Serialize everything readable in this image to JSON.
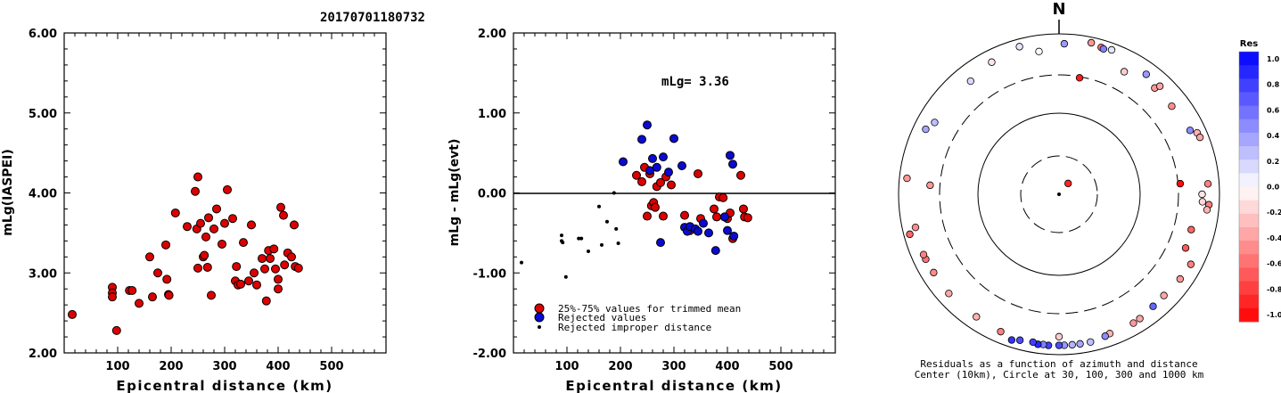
{
  "title": "20170701180732",
  "left_plot": {
    "ylabel": "mLg(IASPEI)",
    "xlabel": "Epicentral distance (km)",
    "ytick_labels": [
      "2.00",
      "3.00",
      "4.00",
      "5.00",
      "6.00"
    ],
    "xtick_labels": [
      "100",
      "200",
      "300",
      "400",
      "500"
    ]
  },
  "middle_plot": {
    "ylabel": "mLg - mLg(evt)",
    "xlabel": "Epicentral distance (km)",
    "ytick_labels": [
      "-2.00",
      "-1.00",
      "0.00",
      "1.00",
      "2.00"
    ],
    "xtick_labels": [
      "100",
      "200",
      "300",
      "400",
      "500"
    ],
    "annotation": "mLg= 3.36",
    "legend": {
      "trimmed": "25%-75% values for trimmed mean",
      "rejected": "Rejected values",
      "improper": "Rejected improper distance"
    }
  },
  "polar_plot": {
    "north_label": "N",
    "caption_line1": "Residuals as a function of azimuth and distance",
    "caption_line2": "Center (10km), Circle at 30, 100, 300 and 1000 km"
  },
  "colorbar": {
    "title": "Res",
    "labels": [
      "1.0",
      "0.8",
      "0.6",
      "0.4",
      "0.2",
      "0.0",
      "-0.2",
      "-0.4",
      "-0.6",
      "-0.8",
      "-1.0"
    ]
  },
  "colors": {
    "red": "#dd0000",
    "blue": "#0a0ad0",
    "black": "#000000"
  },
  "chart_data": [
    {
      "type": "scatter",
      "title": "20170701180732",
      "xlabel": "Epicentral distance (km)",
      "ylabel": "mLg(IASPEI)",
      "xlim": [
        0,
        600
      ],
      "ylim": [
        2.0,
        6.0
      ],
      "series": [
        {
          "points": [
            [
              15,
              2.48
            ],
            [
              90,
              2.82
            ],
            [
              90,
              2.75
            ],
            [
              90,
              2.7
            ],
            [
              98,
              2.28
            ],
            [
              122,
              2.78
            ],
            [
              127,
              2.78
            ],
            [
              140,
              2.62
            ],
            [
              160,
              3.2
            ],
            [
              165,
              2.7
            ],
            [
              175,
              3.0
            ],
            [
              190,
              3.35
            ],
            [
              192,
              2.92
            ],
            [
              195,
              2.73
            ],
            [
              196,
              2.72
            ],
            [
              208,
              3.75
            ],
            [
              230,
              3.58
            ],
            [
              245,
              4.02
            ],
            [
              250,
              4.2
            ],
            [
              248,
              3.55
            ],
            [
              250,
              3.06
            ],
            [
              255,
              3.62
            ],
            [
              260,
              3.2
            ],
            [
              262,
              3.22
            ],
            [
              265,
              3.45
            ],
            [
              268,
              3.07
            ],
            [
              270,
              3.69
            ],
            [
              275,
              2.72
            ],
            [
              280,
              3.55
            ],
            [
              285,
              3.8
            ],
            [
              295,
              3.36
            ],
            [
              300,
              3.62
            ],
            [
              305,
              4.04
            ],
            [
              315,
              3.68
            ],
            [
              320,
              2.9
            ],
            [
              322,
              3.08
            ],
            [
              325,
              2.85
            ],
            [
              330,
              2.86
            ],
            [
              335,
              3.38
            ],
            [
              345,
              2.9
            ],
            [
              350,
              3.6
            ],
            [
              355,
              3.0
            ],
            [
              360,
              2.85
            ],
            [
              370,
              3.18
            ],
            [
              375,
              3.05
            ],
            [
              378,
              2.65
            ],
            [
              382,
              3.28
            ],
            [
              385,
              3.18
            ],
            [
              392,
              3.3
            ],
            [
              395,
              3.05
            ],
            [
              400,
              2.8
            ],
            [
              400,
              2.92
            ],
            [
              405,
              3.82
            ],
            [
              410,
              3.72
            ],
            [
              412,
              3.1
            ],
            [
              418,
              3.25
            ],
            [
              425,
              3.2
            ],
            [
              430,
              3.6
            ],
            [
              432,
              3.08
            ],
            [
              438,
              3.06
            ]
          ]
        }
      ]
    },
    {
      "type": "scatter",
      "title": "mLg= 3.36",
      "xlabel": "Epicentral distance (km)",
      "ylabel": "mLg - mLg(evt)",
      "xlim": [
        0,
        600
      ],
      "ylim": [
        -2.0,
        2.0
      ],
      "series": [
        {
          "name": "25%-75% values for trimmed mean",
          "points": [
            [
              230,
              0.22
            ],
            [
              240,
              0.14
            ],
            [
              245,
              0.32
            ],
            [
              250,
              -0.29
            ],
            [
              255,
              0.24
            ],
            [
              258,
              -0.16
            ],
            [
              262,
              -0.12
            ],
            [
              265,
              -0.18
            ],
            [
              268,
              0.08
            ],
            [
              275,
              0.13
            ],
            [
              280,
              -0.29
            ],
            [
              285,
              0.2
            ],
            [
              295,
              0.1
            ],
            [
              320,
              -0.28
            ],
            [
              325,
              -0.46
            ],
            [
              330,
              -0.47
            ],
            [
              345,
              0.24
            ],
            [
              350,
              -0.32
            ],
            [
              375,
              -0.2
            ],
            [
              380,
              -0.3
            ],
            [
              385,
              -0.05
            ],
            [
              392,
              -0.06
            ],
            [
              395,
              -0.3
            ],
            [
              400,
              -0.32
            ],
            [
              405,
              -0.25
            ],
            [
              410,
              -0.57
            ],
            [
              425,
              0.22
            ],
            [
              430,
              -0.2
            ],
            [
              432,
              -0.3
            ],
            [
              438,
              -0.31
            ]
          ]
        },
        {
          "name": "Rejected values",
          "points": [
            [
              205,
              0.39
            ],
            [
              240,
              0.67
            ],
            [
              250,
              0.85
            ],
            [
              255,
              0.28
            ],
            [
              260,
              0.43
            ],
            [
              268,
              0.32
            ],
            [
              275,
              -0.62
            ],
            [
              280,
              0.45
            ],
            [
              290,
              0.26
            ],
            [
              300,
              0.68
            ],
            [
              315,
              0.34
            ],
            [
              320,
              -0.43
            ],
            [
              325,
              -0.48
            ],
            [
              330,
              -0.42
            ],
            [
              340,
              -0.45
            ],
            [
              345,
              -0.48
            ],
            [
              355,
              -0.38
            ],
            [
              365,
              -0.5
            ],
            [
              378,
              -0.72
            ],
            [
              395,
              -0.3
            ],
            [
              400,
              -0.47
            ],
            [
              405,
              0.47
            ],
            [
              410,
              0.36
            ],
            [
              412,
              -0.54
            ]
          ]
        },
        {
          "name": "Rejected improper distance",
          "points": [
            [
              15,
              -0.87
            ],
            [
              90,
              -0.53
            ],
            [
              90,
              -0.6
            ],
            [
              92,
              -0.62
            ],
            [
              98,
              -1.05
            ],
            [
              122,
              -0.57
            ],
            [
              127,
              -0.57
            ],
            [
              140,
              -0.73
            ],
            [
              160,
              -0.17
            ],
            [
              165,
              -0.65
            ],
            [
              175,
              -0.36
            ],
            [
              188,
              0.0
            ],
            [
              192,
              -0.45
            ],
            [
              196,
              -0.63
            ]
          ]
        }
      ]
    },
    {
      "type": "scatter",
      "title": "Residuals as a function of azimuth and distance",
      "xlabel": "",
      "ylabel": "",
      "series": [
        {
          "points": [
            {
              "azimuth": 40,
              "distance_km": 15,
              "residual": -0.85
            },
            {
              "azimuth": 2,
              "distance_km": 750,
              "residual": 0.4
            },
            {
              "azimuth": 12,
              "distance_km": 850,
              "residual": -0.4
            },
            {
              "azimuth": 16,
              "distance_km": 800,
              "residual": -0.55
            },
            {
              "azimuth": 17,
              "distance_km": 780,
              "residual": 0.5
            },
            {
              "azimuth": 20,
              "distance_km": 820,
              "residual": 0.1
            },
            {
              "azimuth": 345,
              "distance_km": 800,
              "residual": 0.1
            },
            {
              "azimuth": 352,
              "distance_km": 620,
              "residual": 0.0
            },
            {
              "azimuth": 10,
              "distance_km": 290,
              "residual": -0.9
            },
            {
              "azimuth": 28,
              "distance_km": 530,
              "residual": -0.2
            },
            {
              "azimuth": 36,
              "distance_km": 700,
              "residual": 0.4
            },
            {
              "azimuth": 42,
              "distance_km": 600,
              "residual": -0.4
            },
            {
              "azimuth": 43,
              "distance_km": 690,
              "residual": -0.35
            },
            {
              "azimuth": 52,
              "distance_km": 600,
              "residual": -0.45
            },
            {
              "azimuth": 64,
              "distance_km": 650,
              "residual": 0.45
            },
            {
              "azimuth": 66,
              "distance_km": 760,
              "residual": -0.3
            },
            {
              "azimuth": 68,
              "distance_km": 780,
              "residual": -0.35
            },
            {
              "azimuth": 85,
              "distance_km": 320,
              "residual": -0.95
            },
            {
              "azimuth": 86,
              "distance_km": 720,
              "residual": -0.5
            },
            {
              "azimuth": 90,
              "distance_km": 600,
              "residual": -0.1
            },
            {
              "azimuth": 93,
              "distance_km": 610,
              "residual": -0.15
            },
            {
              "azimuth": 94,
              "distance_km": 740,
              "residual": -0.5
            },
            {
              "azimuth": 96,
              "distance_km": 710,
              "residual": -0.3
            },
            {
              "azimuth": 105,
              "distance_km": 500,
              "residual": -0.6
            },
            {
              "azimuth": 113,
              "distance_km": 510,
              "residual": -0.65
            },
            {
              "azimuth": 118,
              "distance_km": 720,
              "residual": -0.5
            },
            {
              "azimuth": 125,
              "distance_km": 690,
              "residual": -0.4
            },
            {
              "azimuth": 134,
              "distance_km": 650,
              "residual": -0.35
            },
            {
              "azimuth": 140,
              "distance_km": 660,
              "residual": 0.6
            },
            {
              "azimuth": 147,
              "distance_km": 700,
              "residual": -0.35
            },
            {
              "azimuth": 150,
              "distance_km": 710,
              "residual": -0.4
            },
            {
              "azimuth": 160,
              "distance_km": 700,
              "residual": -0.3
            },
            {
              "azimuth": 162,
              "distance_km": 720,
              "residual": 0.45
            },
            {
              "azimuth": 168,
              "distance_km": 760,
              "residual": 0.25
            },
            {
              "azimuth": 172,
              "distance_km": 760,
              "residual": 0.35
            },
            {
              "azimuth": 175,
              "distance_km": 760,
              "residual": 0.3
            },
            {
              "azimuth": 178,
              "distance_km": 760,
              "residual": 0.4
            },
            {
              "azimuth": 180,
              "distance_km": 760,
              "residual": 0.7
            },
            {
              "azimuth": 184,
              "distance_km": 770,
              "residual": 0.75
            },
            {
              "azimuth": 186,
              "distance_km": 760,
              "residual": 0.5
            },
            {
              "azimuth": 188,
              "distance_km": 770,
              "residual": 0.85
            },
            {
              "azimuth": 190,
              "distance_km": 740,
              "residual": 0.75
            },
            {
              "azimuth": 195,
              "distance_km": 760,
              "residual": 0.7
            },
            {
              "azimuth": 198,
              "distance_km": 810,
              "residual": 0.8
            },
            {
              "azimuth": 180,
              "distance_km": 590,
              "residual": -0.2
            },
            {
              "azimuth": 203,
              "distance_km": 720,
              "residual": -0.5
            },
            {
              "azimuth": 214,
              "distance_km": 690,
              "residual": -0.3
            },
            {
              "azimuth": 228,
              "distance_km": 700,
              "residual": -0.35
            },
            {
              "azimuth": 238,
              "distance_km": 690,
              "residual": -0.45
            },
            {
              "azimuth": 244,
              "distance_km": 700,
              "residual": -0.55
            },
            {
              "azimuth": 246,
              "distance_km": 700,
              "residual": -0.5
            },
            {
              "azimuth": 255,
              "distance_km": 840,
              "residual": -0.6
            },
            {
              "azimuth": 257,
              "distance_km": 680,
              "residual": -0.45
            },
            {
              "azimuth": 276,
              "distance_km": 800,
              "residual": -0.4
            },
            {
              "azimuth": 274,
              "distance_km": 400,
              "residual": -0.4
            },
            {
              "azimuth": 296,
              "distance_km": 700,
              "residual": 0.35
            },
            {
              "azimuth": 300,
              "distance_km": 610,
              "residual": 0.25
            },
            {
              "azimuth": 333,
              "distance_km": 700,
              "residual": -0.1
            },
            {
              "azimuth": 322,
              "distance_km": 610,
              "residual": 0.15
            }
          ]
        }
      ]
    }
  ]
}
